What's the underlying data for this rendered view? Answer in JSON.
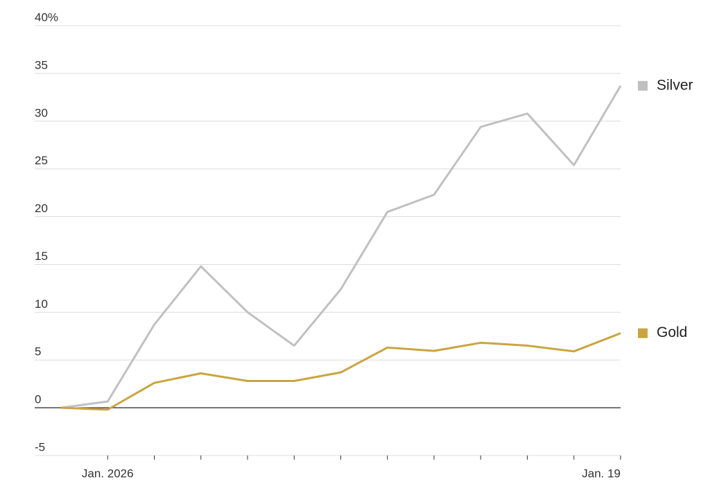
{
  "chart_data": {
    "type": "line",
    "categories": [
      null,
      "Jan. 2026",
      null,
      null,
      null,
      null,
      null,
      null,
      null,
      null,
      null,
      null,
      "Jan. 19"
    ],
    "series": [
      {
        "name": "Silver",
        "color": "#c0c0c0",
        "values": [
          0,
          0.65,
          8.7,
          14.8,
          10.0,
          6.5,
          12.4,
          20.5,
          22.3,
          29.4,
          30.8,
          25.4,
          33.7
        ]
      },
      {
        "name": "Gold",
        "color": "#c9a53f",
        "values": [
          0,
          -0.2,
          2.6,
          3.6,
          2.8,
          2.8,
          3.7,
          6.3,
          5.95,
          6.8,
          6.5,
          5.9,
          7.8
        ]
      }
    ],
    "ylim": [
      -5,
      40
    ],
    "yticks": [
      -5,
      0,
      5,
      10,
      15,
      20,
      25,
      30,
      35,
      {
        "value": 40,
        "label": "40%"
      }
    ],
    "grid": true
  }
}
